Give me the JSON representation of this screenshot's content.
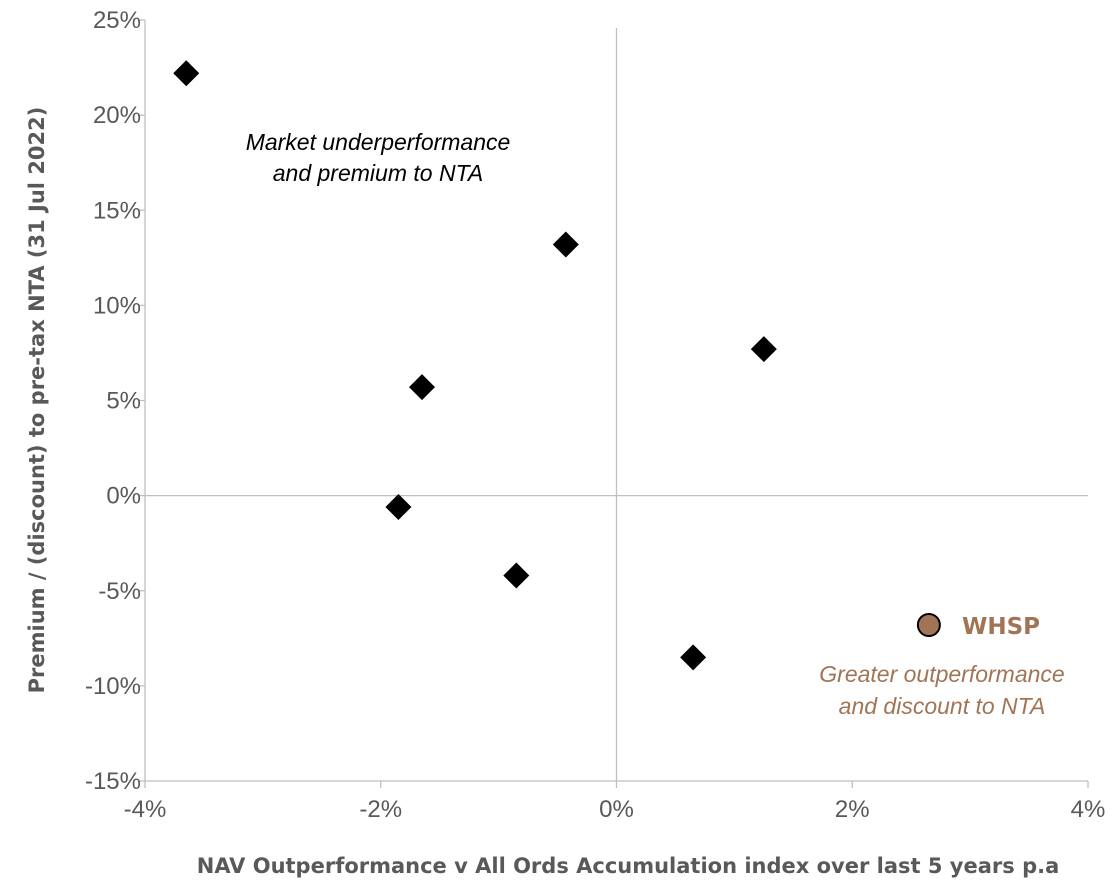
{
  "chart_data": {
    "type": "scatter",
    "xlabel": "NAV Outperformance v All Ords Accumulation index over last 5 years p.a",
    "ylabel": "Premium / (discount) to pre-tax NTA (31 Jul 2022)",
    "xlim": [
      -4,
      4
    ],
    "ylim": [
      -15,
      25
    ],
    "x_ticks": [
      -4,
      -2,
      0,
      2,
      4
    ],
    "y_ticks": [
      -15,
      -10,
      -5,
      0,
      5,
      10,
      15,
      20,
      25
    ],
    "x_tick_labels": [
      "-4%",
      "-2%",
      "0%",
      "2%",
      "4%"
    ],
    "y_tick_labels": [
      "-15%",
      "-10%",
      "-5%",
      "0%",
      "5%",
      "10%",
      "15%",
      "20%",
      "25%"
    ],
    "grid": false,
    "reference_lines": {
      "x": 0,
      "y": 0
    },
    "series": [
      {
        "marker": "diamond",
        "color": "#000000",
        "points": [
          {
            "x": -3.65,
            "y": 22.2
          },
          {
            "x": -0.43,
            "y": 13.2
          },
          {
            "x": 1.25,
            "y": 7.7
          },
          {
            "x": -1.65,
            "y": 5.7
          },
          {
            "x": -1.85,
            "y": -0.6
          },
          {
            "x": -0.85,
            "y": -4.2
          },
          {
            "x": 0.65,
            "y": -8.5
          }
        ]
      },
      {
        "name": "WHSP",
        "marker": "circle",
        "color": "#A27456",
        "points": [
          {
            "x": 2.65,
            "y": -6.8
          }
        ]
      }
    ],
    "annotations": [
      {
        "lines": [
          "Market underperformance",
          "and premium to NTA"
        ],
        "color": "#000000"
      },
      {
        "lines": [
          "Greater outperformance",
          "and discount to NTA"
        ],
        "color": "#A27456"
      }
    ]
  }
}
